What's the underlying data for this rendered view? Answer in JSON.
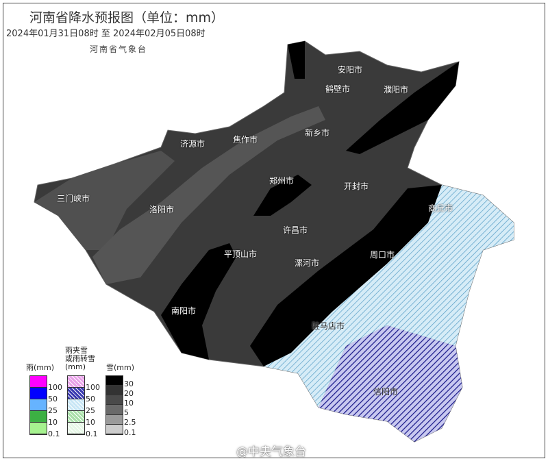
{
  "title": "河南省降水预报图（单位：mm）",
  "period": "2024年01月31日08时  至  2024年02月05日08时",
  "issuer": "河南省气象台",
  "watermark": "@中央气象台",
  "cities": [
    "安阳市",
    "鹤壁市",
    "濮阳市",
    "焦作市",
    "新乡市",
    "济源市",
    "三门峡市",
    "洛阳市",
    "郑州市",
    "开封市",
    "商丘市",
    "许昌市",
    "平顶山市",
    "漯河市",
    "周口市",
    "南阳市",
    "驻马店市",
    "信阳市"
  ],
  "legend": {
    "rain": {
      "title": "雨(mm)",
      "labels": [
        "100",
        "50",
        "25",
        "10",
        "0.1"
      ],
      "colors": [
        "#ff00ff",
        "#0000ff",
        "#66b3ff",
        "#3cb043",
        "#a6f28f"
      ]
    },
    "sleet": {
      "title": "雨夹雪\n或雨转雪\n(mm)",
      "labels": [
        "100",
        "50",
        "25",
        "10",
        "0.1"
      ],
      "colors": [
        "#e8a0e8",
        "#3a3ab0",
        "#c8e6f5",
        "#a8e0a8",
        "#e6f7e6"
      ]
    },
    "snow": {
      "title": "雪(mm)",
      "labels": [
        "30",
        "20",
        "10",
        "5",
        "2.5",
        "0.1"
      ],
      "colors": [
        "#000000",
        "#333333",
        "#4a4a4a",
        "#6a6a6a",
        "#9a9a9a",
        "#cccccc"
      ]
    }
  }
}
